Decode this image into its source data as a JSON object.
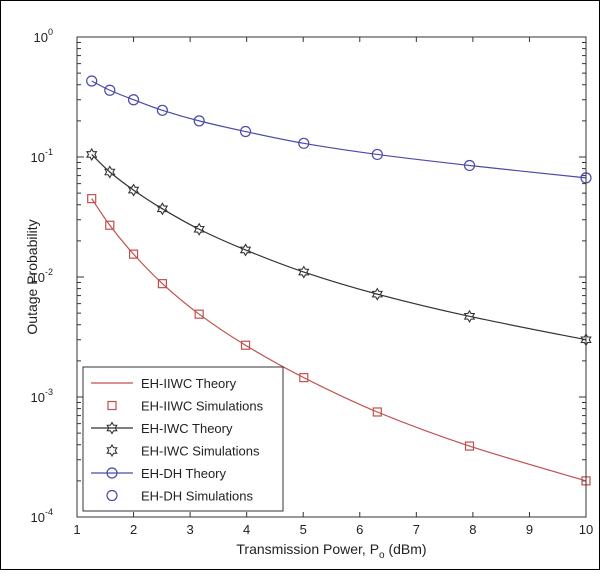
{
  "chart_data": {
    "type": "line",
    "title": "",
    "xlabel": {
      "main": "Transmission Power, P",
      "sub": "o",
      "unit": " (dBm)"
    },
    "ylabel": "Outage Probability",
    "xscale": "linear",
    "yscale": "log",
    "xlim": [
      1,
      10
    ],
    "ylim": [
      0.0001,
      1
    ],
    "grid": false,
    "legend_position": "bottom-left",
    "x_ticks": [
      "1",
      "2",
      "3",
      "4",
      "5",
      "6",
      "7",
      "8",
      "9",
      "10"
    ],
    "y_ticks": [
      {
        "base": "10",
        "exp": "0"
      },
      {
        "base": "10",
        "exp": "-1"
      },
      {
        "base": "10",
        "exp": "-2"
      },
      {
        "base": "10",
        "exp": "-3"
      },
      {
        "base": "10",
        "exp": "-4"
      }
    ],
    "x": [
      1.26,
      1.58,
      2.0,
      2.51,
      3.16,
      3.98,
      5.01,
      6.31,
      7.94,
      10.0
    ],
    "series": [
      {
        "theory_name": "EH-IIWC Theory",
        "sim_name": "EH-IIWC Simulations",
        "color": "#c0504d",
        "marker": "square",
        "values": [
          0.045,
          0.027,
          0.0155,
          0.0088,
          0.0049,
          0.0027,
          0.00145,
          0.00075,
          0.00039,
          0.0002
        ]
      },
      {
        "theory_name": "EH-IWC Theory",
        "sim_name": "EH-IWC Simulations",
        "color": "#333333",
        "marker": "hexagram",
        "values": [
          0.105,
          0.075,
          0.053,
          0.037,
          0.025,
          0.0168,
          0.011,
          0.0072,
          0.0047,
          0.003
        ]
      },
      {
        "theory_name": "EH-DH Theory",
        "sim_name": "EH-DH Simulations",
        "color": "#4a4aa8",
        "marker": "circle",
        "values": [
          0.43,
          0.36,
          0.3,
          0.245,
          0.2,
          0.163,
          0.13,
          0.105,
          0.085,
          0.067
        ]
      }
    ]
  }
}
